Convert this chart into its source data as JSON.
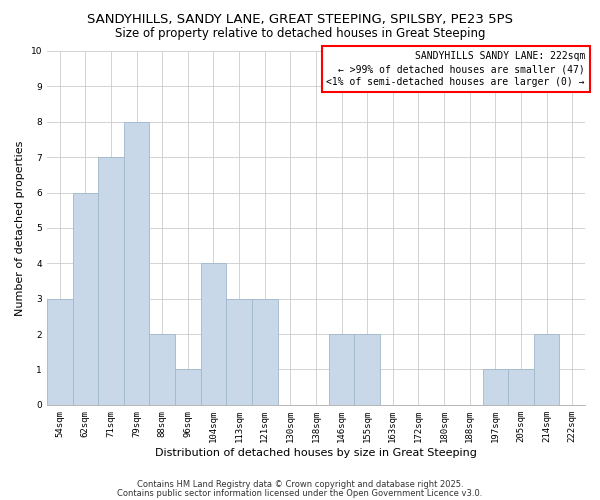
{
  "title": "SANDYHILLS, SANDY LANE, GREAT STEEPING, SPILSBY, PE23 5PS",
  "subtitle": "Size of property relative to detached houses in Great Steeping",
  "xlabel": "Distribution of detached houses by size in Great Steeping",
  "ylabel": "Number of detached properties",
  "bar_color": "#c8d8e8",
  "bar_edgecolor": "#a0b8cc",
  "background_color": "#ffffff",
  "grid_color": "#cccccc",
  "bins": [
    "54sqm",
    "62sqm",
    "71sqm",
    "79sqm",
    "88sqm",
    "96sqm",
    "104sqm",
    "113sqm",
    "121sqm",
    "130sqm",
    "138sqm",
    "146sqm",
    "155sqm",
    "163sqm",
    "172sqm",
    "180sqm",
    "188sqm",
    "197sqm",
    "205sqm",
    "214sqm",
    "222sqm"
  ],
  "values": [
    3,
    6,
    7,
    8,
    2,
    1,
    4,
    3,
    3,
    0,
    0,
    2,
    2,
    0,
    0,
    0,
    0,
    1,
    1,
    2,
    0
  ],
  "ylim": [
    0,
    10
  ],
  "yticks": [
    0,
    1,
    2,
    3,
    4,
    5,
    6,
    7,
    8,
    9,
    10
  ],
  "annotation_box_text": "SANDYHILLS SANDY LANE: 222sqm\n← >99% of detached houses are smaller (47)\n<1% of semi-detached houses are larger (0) →",
  "annotation_box_color": "#ff0000",
  "footer_line1": "Contains HM Land Registry data © Crown copyright and database right 2025.",
  "footer_line2": "Contains public sector information licensed under the Open Government Licence v3.0.",
  "title_fontsize": 9.5,
  "subtitle_fontsize": 8.5,
  "axis_label_fontsize": 8,
  "tick_fontsize": 6.5,
  "annotation_fontsize": 7,
  "footer_fontsize": 6
}
